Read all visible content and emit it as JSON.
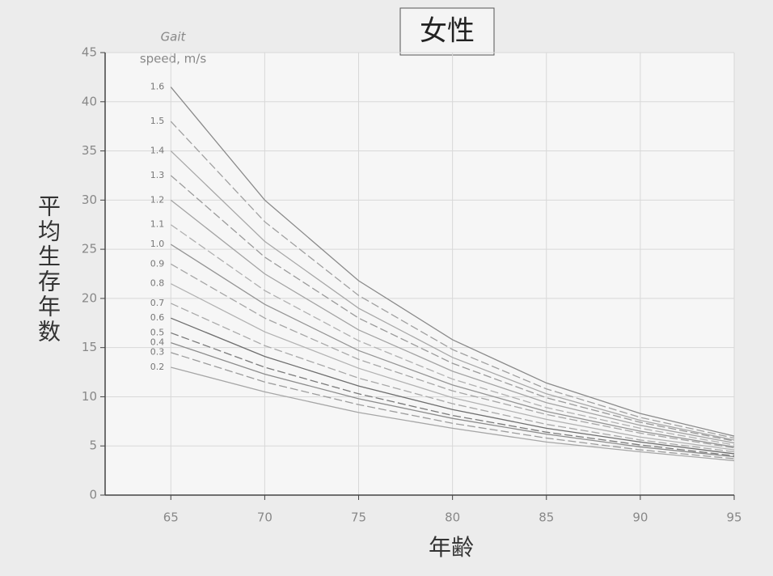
{
  "chart_data": {
    "type": "line",
    "title": "女性",
    "x_label": "年齢",
    "y_label": "平均生存年数",
    "legend_title": [
      "Gait",
      "speed, m/s"
    ],
    "x": [
      65,
      70,
      75,
      80,
      85,
      90,
      95
    ],
    "xlim": [
      61.5,
      95
    ],
    "xticks": [
      65,
      70,
      75,
      80,
      85,
      90,
      95
    ],
    "ylim": [
      0,
      45
    ],
    "yticks": [
      0,
      5,
      10,
      15,
      20,
      25,
      30,
      35,
      40,
      45
    ],
    "grid": true,
    "series": [
      {
        "name": "1.6",
        "color": "#8a8a8a",
        "values": [
          41.5,
          30.0,
          21.8,
          15.8,
          11.4,
          8.3,
          6.0
        ]
      },
      {
        "name": "1.5",
        "color": "#a0a0a0",
        "values": [
          38,
          27.8,
          20.3,
          14.8,
          10.8,
          7.9,
          5.8
        ]
      },
      {
        "name": "1.4",
        "color": "#a8a8a8",
        "values": [
          35,
          25.8,
          19.0,
          14.0,
          10.3,
          7.6,
          5.6
        ]
      },
      {
        "name": "1.3",
        "color": "#9a9a9a",
        "values": [
          32.5,
          24.2,
          18.0,
          13.4,
          9.9,
          7.4,
          5.5
        ]
      },
      {
        "name": "1.2",
        "color": "#a4a4a4",
        "values": [
          30,
          22.5,
          16.8,
          12.6,
          9.4,
          7.1,
          5.3
        ]
      },
      {
        "name": "1.1",
        "color": "#b0b0b0",
        "values": [
          27.5,
          20.8,
          15.7,
          11.8,
          8.9,
          6.8,
          5.1
        ]
      },
      {
        "name": "1.0",
        "color": "#959595",
        "values": [
          25.5,
          19.4,
          14.7,
          11.2,
          8.5,
          6.5,
          4.9
        ]
      },
      {
        "name": "0.9",
        "color": "#a6a6a6",
        "values": [
          23.5,
          18.0,
          13.8,
          10.6,
          8.2,
          6.3,
          4.8
        ]
      },
      {
        "name": "0.8",
        "color": "#b2b2b2",
        "values": [
          21.5,
          16.6,
          12.9,
          9.9,
          7.7,
          5.9,
          4.6
        ]
      },
      {
        "name": "0.7",
        "color": "#a8a8a8",
        "values": [
          19.5,
          15.2,
          11.9,
          9.3,
          7.2,
          5.6,
          4.4
        ]
      },
      {
        "name": "0.6",
        "color": "#6e6e6e",
        "values": [
          18,
          14.1,
          11.1,
          8.7,
          6.8,
          5.4,
          4.2
        ]
      },
      {
        "name": "0.5",
        "color": "#7a7a7a",
        "values": [
          16.5,
          13.0,
          10.3,
          8.1,
          6.4,
          5.1,
          4.0
        ]
      },
      {
        "name": "0.4",
        "color": "#8c8c8c",
        "values": [
          15.5,
          12.3,
          9.8,
          7.8,
          6.2,
          4.9,
          3.9
        ]
      },
      {
        "name": "0.3",
        "color": "#9c9c9c",
        "values": [
          14.5,
          11.5,
          9.2,
          7.3,
          5.8,
          4.6,
          3.7
        ]
      },
      {
        "name": "0.2",
        "color": "#a6a6a6",
        "values": [
          13,
          10.5,
          8.4,
          6.8,
          5.4,
          4.4,
          3.5
        ]
      }
    ]
  }
}
